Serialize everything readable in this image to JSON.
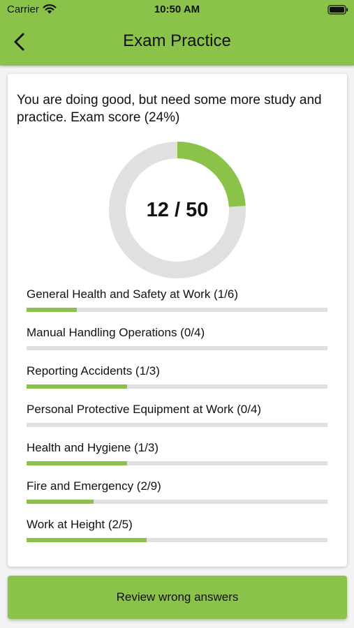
{
  "status_bar": {
    "carrier": "Carrier",
    "time": "10:50 AM"
  },
  "header": {
    "title": "Exam Practice"
  },
  "summary": {
    "message": "You are doing good, but need some more study and practice. Exam score (24%)"
  },
  "score": {
    "label": "12 / 50",
    "correct": 12,
    "total": 50
  },
  "topics": [
    {
      "label": "General Health and Safety at Work (1/6)",
      "correct": 1,
      "total": 6
    },
    {
      "label": "Manual Handling Operations (0/4)",
      "correct": 0,
      "total": 4
    },
    {
      "label": "Reporting Accidents (1/3)",
      "correct": 1,
      "total": 3
    },
    {
      "label": "Personal Protective Equipment at Work (0/4)",
      "correct": 0,
      "total": 4
    },
    {
      "label": "Health and Hygiene (1/3)",
      "correct": 1,
      "total": 3
    },
    {
      "label": "Fire and Emergency (2/9)",
      "correct": 2,
      "total": 9
    },
    {
      "label": "Work at Height (2/5)",
      "correct": 2,
      "total": 5
    }
  ],
  "actions": {
    "review_label": "Review wrong answers"
  },
  "colors": {
    "accent": "#8bc34a",
    "track": "#e0e0e0"
  },
  "icons": {
    "back": "chevron-left-icon",
    "wifi": "wifi-icon",
    "battery": "battery-icon"
  }
}
